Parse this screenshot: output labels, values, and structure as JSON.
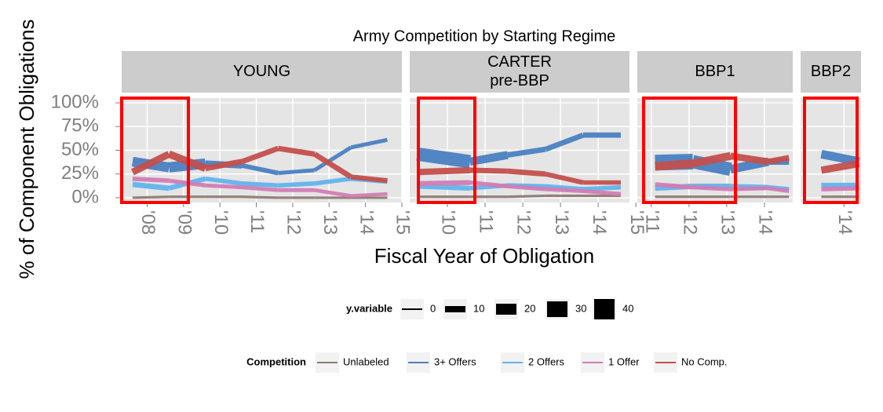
{
  "chart_data": {
    "type": "line",
    "title": "Army Competition by Starting Regime",
    "xlabel": "Fiscal Year of Obligation",
    "ylabel": "% of Component Obligations",
    "ylim": [
      -5,
      105
    ],
    "yticks": [
      {
        "value": 0,
        "label": "0%"
      },
      {
        "value": 25,
        "label": "25%"
      },
      {
        "value": 50,
        "label": "50%"
      },
      {
        "value": 75,
        "label": "75%"
      },
      {
        "value": 100,
        "label": "100%"
      }
    ],
    "grid": true,
    "size_legend": {
      "title": "y.variable",
      "values": [
        0,
        10,
        20,
        30,
        40
      ]
    },
    "legend_title": "Competition",
    "series": [
      {
        "name": "Unlabeled",
        "color": "#8f7a72"
      },
      {
        "name": "3+ Offers",
        "color": "#4a7fc1"
      },
      {
        "name": "2 Offers",
        "color": "#62b3ec"
      },
      {
        "name": "1 Offer",
        "color": "#d27cb4"
      },
      {
        "name": "No Comp.",
        "color": "#c34f4c"
      }
    ],
    "facets": [
      {
        "strip": [
          "YOUNG"
        ],
        "xlim": [
          2007.3,
          2015
        ],
        "xticks": [
          {
            "value": 2008,
            "label": "'08"
          },
          {
            "value": 2009,
            "label": "'09"
          },
          {
            "value": 2010,
            "label": "'10"
          },
          {
            "value": 2011,
            "label": "'11"
          },
          {
            "value": 2012,
            "label": "'12"
          },
          {
            "value": 2013,
            "label": "'13"
          },
          {
            "value": 2014,
            "label": "'14"
          },
          {
            "value": 2015,
            "label": "'15"
          }
        ],
        "x": [
          2007.6,
          2008.6,
          2009.6,
          2010.6,
          2011.6,
          2012.6,
          2013.6,
          2014.6
        ],
        "lines": [
          {
            "values": [
              0,
              1,
              1,
              1,
              0,
              0,
              0,
              0
            ],
            "sizes": [
              2,
              2,
              2,
              2,
              2,
              2,
              2,
              2
            ]
          },
          {
            "values": [
              38,
              32,
              36,
              34,
              26,
              29,
              53,
              61
            ],
            "sizes": [
              10,
              25,
              12,
              8,
              5,
              5,
              5,
              5
            ]
          },
          {
            "values": [
              14,
              10,
              20,
              15,
              13,
              15,
              20,
              17
            ],
            "sizes": [
              8,
              8,
              6,
              6,
              6,
              6,
              6,
              6
            ]
          },
          {
            "values": [
              20,
              18,
              13,
              11,
              8,
              8,
              2,
              4
            ],
            "sizes": [
              6,
              6,
              5,
              5,
              5,
              5,
              4,
              4
            ]
          },
          {
            "values": [
              27,
              46,
              31,
              38,
              52,
              46,
              22,
              18
            ],
            "sizes": [
              8,
              15,
              10,
              8,
              8,
              8,
              8,
              6
            ]
          }
        ]
      },
      {
        "strip": [
          "CARTER",
          "pre-BBP"
        ],
        "xlim": [
          2009,
          2014.83
        ],
        "xticks": [
          {
            "value": 2010,
            "label": "'10"
          },
          {
            "value": 2011,
            "label": "'11"
          },
          {
            "value": 2012,
            "label": "'12"
          },
          {
            "value": 2013,
            "label": "'13"
          },
          {
            "value": 2014,
            "label": "'14"
          },
          {
            "value": 2015,
            "label": "'15"
          }
        ],
        "x": [
          2009.2,
          2010.6,
          2011.6,
          2012.6,
          2013.6,
          2014.6
        ],
        "lines": [
          {
            "values": [
              1,
              1,
              1,
              2,
              2,
              2
            ],
            "sizes": [
              2,
              2,
              2,
              2,
              2,
              2
            ]
          },
          {
            "values": [
              46,
              38,
              45,
              51,
              66,
              66
            ],
            "sizes": [
              30,
              20,
              8,
              8,
              8,
              8
            ]
          },
          {
            "values": [
              12,
              10,
              13,
              12,
              9,
              11
            ],
            "sizes": [
              8,
              6,
              6,
              6,
              6,
              6
            ]
          },
          {
            "values": [
              15,
              16,
              12,
              9,
              7,
              4
            ],
            "sizes": [
              8,
              6,
              5,
              5,
              5,
              5
            ]
          },
          {
            "values": [
              27,
              29,
              28,
              25,
              16,
              16
            ],
            "sizes": [
              12,
              8,
              8,
              8,
              6,
              6
            ]
          }
        ]
      },
      {
        "strip": [
          "BBP1"
        ],
        "xlim": [
          2010.63,
          2014.75
        ],
        "xticks": [
          {
            "value": 2011,
            "label": "'11"
          },
          {
            "value": 2012,
            "label": "'12"
          },
          {
            "value": 2013,
            "label": "'13"
          },
          {
            "value": 2014,
            "label": "'14"
          }
        ],
        "x": [
          2011.1,
          2012.1,
          2013.1,
          2014.1,
          2014.65
        ],
        "lines": [
          {
            "values": [
              1,
              1,
              1,
              1,
              1
            ],
            "sizes": [
              2,
              2,
              2,
              2,
              2
            ]
          },
          {
            "values": [
              37,
              38,
              30,
              38,
              38
            ],
            "sizes": [
              30,
              30,
              20,
              10,
              10
            ]
          },
          {
            "values": [
              10,
              12,
              12,
              11,
              9
            ],
            "sizes": [
              8,
              8,
              8,
              6,
              6
            ]
          },
          {
            "values": [
              14,
              11,
              9,
              10,
              7
            ],
            "sizes": [
              6,
              6,
              5,
              5,
              5
            ]
          },
          {
            "values": [
              33,
              36,
              44,
              38,
              42
            ],
            "sizes": [
              15,
              15,
              12,
              10,
              8
            ]
          }
        ]
      },
      {
        "strip": [
          "BBP2"
        ],
        "xlim": [
          2012.85,
          2014.45
        ],
        "xticks": [
          {
            "value": 2014,
            "label": "'14"
          }
        ],
        "x": [
          2013.4,
          2014.4
        ],
        "lines": [
          {
            "values": [
              1,
              1
            ],
            "sizes": [
              2,
              2
            ]
          },
          {
            "values": [
              46,
              38
            ],
            "sizes": [
              15,
              15
            ]
          },
          {
            "values": [
              13,
              13
            ],
            "sizes": [
              8,
              8
            ]
          },
          {
            "values": [
              9,
              10
            ],
            "sizes": [
              6,
              6
            ]
          },
          {
            "values": [
              29,
              36
            ],
            "sizes": [
              12,
              12
            ]
          }
        ]
      }
    ]
  }
}
